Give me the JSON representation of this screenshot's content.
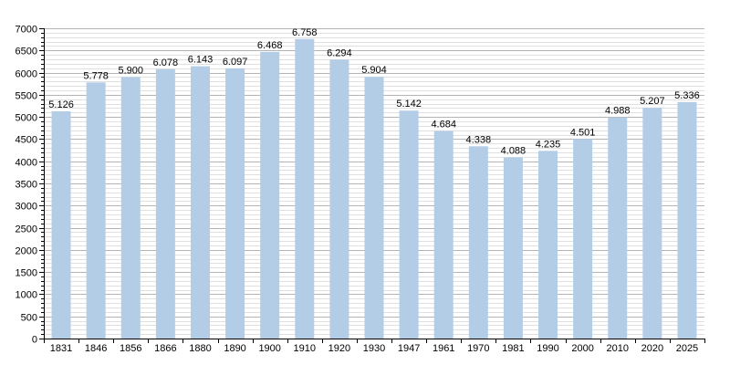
{
  "chart_data": {
    "type": "bar",
    "categories": [
      "1831",
      "1846",
      "1856",
      "1866",
      "1880",
      "1890",
      "1900",
      "1910",
      "1920",
      "1930",
      "1947",
      "1961",
      "1970",
      "1981",
      "1990",
      "2000",
      "2010",
      "2020",
      "2025"
    ],
    "values": [
      5126,
      5778,
      5900,
      6078,
      6143,
      6097,
      6468,
      6758,
      6294,
      5904,
      5142,
      4684,
      4338,
      4088,
      4235,
      4501,
      4988,
      5207,
      5336
    ],
    "value_labels": [
      "5.126",
      "5.778",
      "5.900",
      "6.078",
      "6.143",
      "6.097",
      "6.468",
      "6.758",
      "6.294",
      "5.904",
      "5.142",
      "4.684",
      "4.338",
      "4.088",
      "4.235",
      "4.501",
      "4.988",
      "5.207",
      "5.336"
    ],
    "ylim": [
      0,
      7000
    ],
    "y_ticks": [
      0,
      500,
      1000,
      1500,
      2000,
      2500,
      3000,
      3500,
      4000,
      4500,
      5000,
      5500,
      6000,
      6500,
      7000
    ],
    "y_tick_labels": [
      "0",
      "500",
      "1000",
      "1500",
      "2000",
      "2500",
      "3000",
      "3500",
      "4000",
      "4500",
      "5000",
      "5500",
      "6000",
      "6500",
      "7000"
    ],
    "grid": true,
    "legend": "none",
    "colors": {
      "bar": "#b3cde6",
      "grid_major": "#b4b4b4",
      "grid_minor": "#e0e0e0",
      "axis": "#000000"
    }
  }
}
